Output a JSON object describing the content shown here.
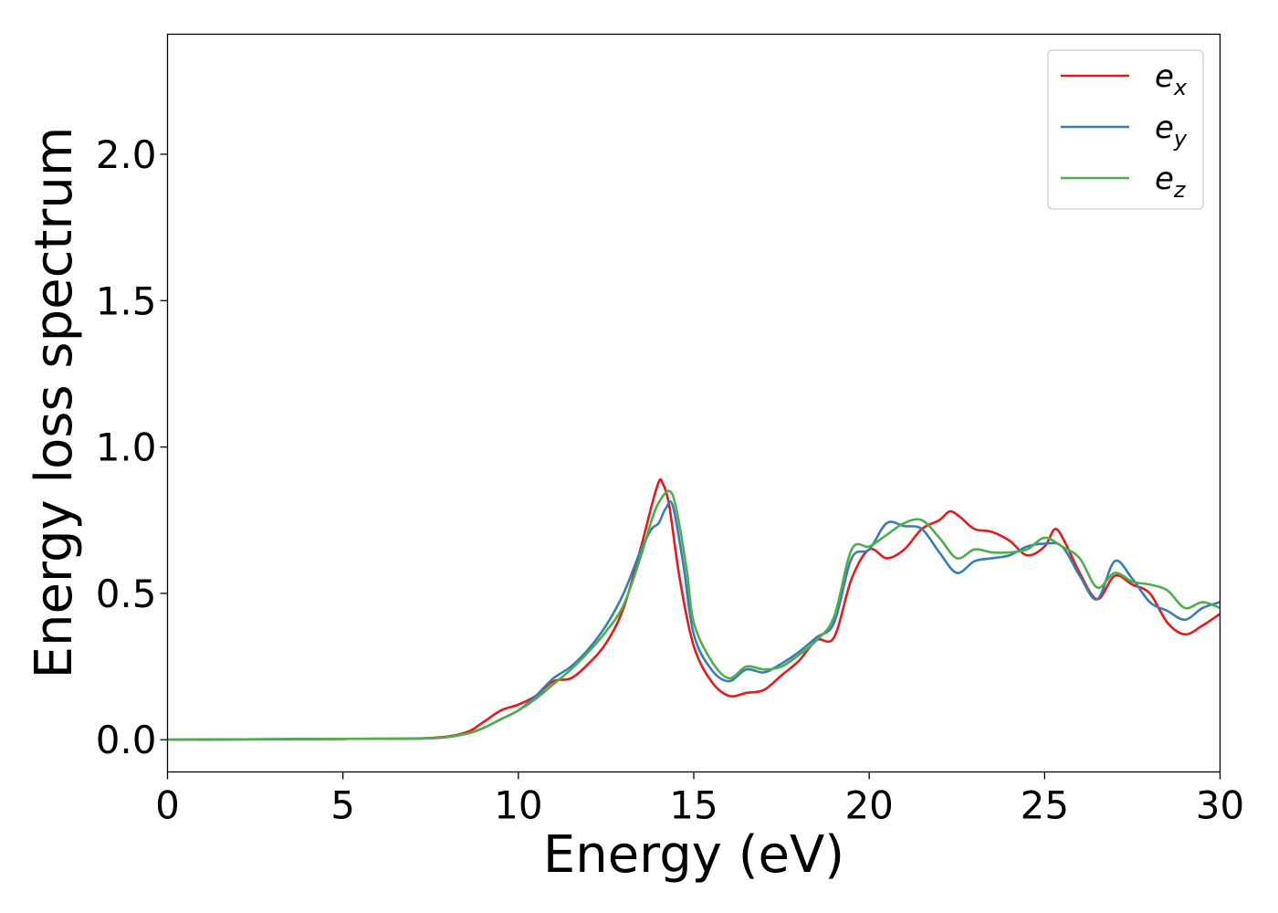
{
  "chart_data": {
    "type": "line",
    "title": "",
    "xlabel": "Energy (eV)",
    "ylabel": "Energy loss spectrum",
    "xlim": [
      0,
      30
    ],
    "ylim": [
      -0.11,
      2.41
    ],
    "xticks": [
      0,
      5,
      10,
      15,
      20,
      25,
      30
    ],
    "xtick_labels": [
      "0",
      "5",
      "10",
      "15",
      "20",
      "25",
      "30"
    ],
    "yticks": [
      0.0,
      0.5,
      1.0,
      1.5,
      2.0
    ],
    "ytick_labels": [
      "0.0",
      "0.5",
      "1.0",
      "1.5",
      "2.0"
    ],
    "grid": false,
    "legend_position": "top-right",
    "series": [
      {
        "name": "e_x",
        "legend_base": "e",
        "legend_sub": "x",
        "color": "#e41a1c",
        "x": [
          0,
          5,
          7.5,
          8.5,
          9,
          9.5,
          10,
          10.5,
          11,
          11.5,
          12,
          12.5,
          13,
          13.5,
          13.8,
          14,
          14.1,
          14.3,
          14.6,
          15,
          15.5,
          16,
          16.5,
          17,
          17.5,
          18,
          18.5,
          19,
          19.5,
          20,
          20.5,
          21,
          21.5,
          22,
          22.3,
          22.6,
          23,
          23.5,
          24,
          24.5,
          25,
          25.3,
          25.6,
          26,
          26.5,
          27,
          27.5,
          28,
          28.5,
          29,
          29.5,
          30
        ],
        "y": [
          0.0,
          0.003,
          0.006,
          0.025,
          0.06,
          0.1,
          0.12,
          0.15,
          0.2,
          0.21,
          0.26,
          0.33,
          0.45,
          0.66,
          0.8,
          0.88,
          0.88,
          0.8,
          0.55,
          0.32,
          0.2,
          0.15,
          0.16,
          0.17,
          0.22,
          0.27,
          0.34,
          0.35,
          0.55,
          0.65,
          0.62,
          0.65,
          0.72,
          0.75,
          0.78,
          0.76,
          0.72,
          0.71,
          0.68,
          0.63,
          0.66,
          0.72,
          0.67,
          0.57,
          0.48,
          0.56,
          0.53,
          0.5,
          0.4,
          0.36,
          0.39,
          0.43
        ]
      },
      {
        "name": "e_y",
        "legend_base": "e",
        "legend_sub": "y",
        "color": "#377eb8",
        "x": [
          0,
          5,
          7.5,
          8.5,
          9,
          9.5,
          10,
          10.5,
          11,
          11.5,
          12,
          12.5,
          13,
          13.5,
          13.8,
          14,
          14.2,
          14.4,
          14.7,
          15,
          15.5,
          16,
          16.5,
          17,
          17.5,
          18,
          18.5,
          19,
          19.5,
          20,
          20.5,
          21,
          21.5,
          22,
          22.5,
          23,
          23.5,
          24,
          24.5,
          25,
          25.5,
          26,
          26.5,
          27,
          27.5,
          28,
          28.5,
          29,
          29.5,
          30
        ],
        "y": [
          0.0,
          0.003,
          0.005,
          0.02,
          0.04,
          0.07,
          0.1,
          0.15,
          0.21,
          0.25,
          0.31,
          0.39,
          0.5,
          0.65,
          0.72,
          0.74,
          0.79,
          0.8,
          0.6,
          0.36,
          0.24,
          0.2,
          0.24,
          0.23,
          0.26,
          0.3,
          0.35,
          0.4,
          0.62,
          0.65,
          0.74,
          0.73,
          0.72,
          0.64,
          0.57,
          0.61,
          0.62,
          0.63,
          0.66,
          0.67,
          0.66,
          0.56,
          0.48,
          0.61,
          0.55,
          0.47,
          0.44,
          0.41,
          0.45,
          0.47
        ]
      },
      {
        "name": "e_z",
        "legend_base": "e",
        "legend_sub": "z",
        "color": "#4daf4a",
        "x": [
          0,
          5,
          7.5,
          8.5,
          9,
          9.5,
          10,
          10.5,
          11,
          11.5,
          12,
          12.5,
          13,
          13.5,
          13.8,
          14,
          14.3,
          14.5,
          14.8,
          15,
          15.5,
          16,
          16.5,
          17,
          17.5,
          18,
          18.5,
          19,
          19.5,
          20,
          20.5,
          21,
          21.5,
          22,
          22.5,
          23,
          23.5,
          24,
          24.5,
          25,
          25.5,
          26,
          26.5,
          27,
          27.5,
          28,
          28.5,
          29,
          29.5,
          30
        ],
        "y": [
          0.0,
          0.003,
          0.005,
          0.02,
          0.04,
          0.07,
          0.1,
          0.14,
          0.19,
          0.24,
          0.3,
          0.37,
          0.46,
          0.63,
          0.75,
          0.81,
          0.85,
          0.79,
          0.58,
          0.4,
          0.27,
          0.21,
          0.25,
          0.24,
          0.25,
          0.29,
          0.34,
          0.42,
          0.65,
          0.66,
          0.7,
          0.74,
          0.75,
          0.69,
          0.62,
          0.65,
          0.64,
          0.64,
          0.65,
          0.69,
          0.66,
          0.62,
          0.52,
          0.57,
          0.54,
          0.53,
          0.51,
          0.45,
          0.47,
          0.45
        ]
      }
    ]
  }
}
